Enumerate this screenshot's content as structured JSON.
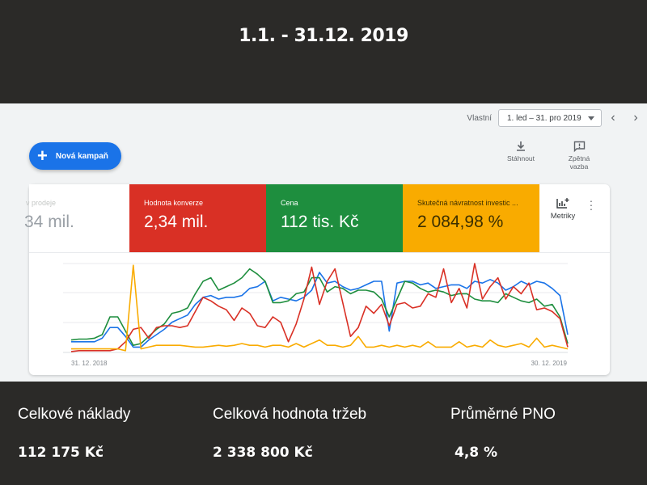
{
  "header": {
    "title": "1.1. - 31.12. 2019"
  },
  "toolbar": {
    "date_label": "Vlastní",
    "date_range": "1. led – 31. pro 2019",
    "prev_icon": "chevron-left-icon",
    "next_icon": "chevron-right-icon",
    "new_campaign_label": "Nová kampaň",
    "download_label": "Stáhnout",
    "feedback_label_1": "Zpětná",
    "feedback_label_2": "vazba"
  },
  "metrics": [
    {
      "label": "ν prodeje",
      "value": "34 mil.",
      "color": "#ffffff"
    },
    {
      "label": "Hodnota konverze",
      "value": "2,34 mil.",
      "color": "#d93025"
    },
    {
      "label": "Cena",
      "value": "112 tis. Kč",
      "color": "#1e8e3e"
    },
    {
      "label": "Skutečná návratnost investic ...",
      "value": "2 084,98 %",
      "color": "#f9ab00"
    }
  ],
  "metriky_label": "Metriky",
  "chart_data": {
    "type": "line",
    "x_start_label": "31. 12. 2018",
    "x_end_label": "30. 12. 2019",
    "grid": true,
    "series": [
      {
        "color": "#1a73e8",
        "values": [
          12,
          12,
          12,
          12,
          16,
          28,
          28,
          18,
          6,
          6,
          14,
          20,
          26,
          34,
          38,
          42,
          54,
          62,
          64,
          60,
          62,
          62,
          64,
          72,
          74,
          80,
          58,
          62,
          60,
          58,
          62,
          70,
          90,
          78,
          80,
          74,
          70,
          72,
          76,
          80,
          80,
          24,
          78,
          80,
          80,
          76,
          78,
          72,
          74,
          76,
          76,
          72,
          80,
          78,
          82,
          78,
          70,
          74,
          80,
          76,
          80,
          78,
          72,
          64,
          20
        ]
      },
      {
        "color": "#1e8e3e",
        "values": [
          14,
          15,
          15,
          16,
          20,
          40,
          40,
          24,
          8,
          10,
          18,
          26,
          32,
          44,
          46,
          50,
          66,
          80,
          84,
          70,
          74,
          78,
          84,
          94,
          88,
          80,
          56,
          56,
          58,
          66,
          68,
          84,
          84,
          68,
          74,
          72,
          66,
          70,
          70,
          68,
          60,
          40,
          60,
          80,
          78,
          72,
          68,
          70,
          68,
          64,
          66,
          66,
          60,
          58,
          58,
          56,
          66,
          62,
          58,
          56,
          60,
          52,
          54,
          40,
          10
        ]
      },
      {
        "color": "#d93025",
        "values": [
          1,
          2,
          2,
          2,
          2,
          2,
          4,
          12,
          26,
          28,
          16,
          28,
          30,
          30,
          28,
          30,
          46,
          62,
          58,
          52,
          48,
          36,
          50,
          44,
          30,
          28,
          40,
          34,
          12,
          32,
          60,
          96,
          54,
          80,
          94,
          56,
          18,
          28,
          52,
          44,
          54,
          30,
          54,
          56,
          50,
          52,
          66,
          62,
          94,
          56,
          72,
          50,
          100,
          60,
          74,
          84,
          60,
          74,
          66,
          78,
          48,
          50,
          46,
          38,
          6
        ]
      },
      {
        "color": "#f9ab00",
        "values": [
          4,
          4,
          4,
          4,
          4,
          4,
          4,
          2,
          98,
          4,
          6,
          8,
          8,
          8,
          8,
          7,
          6,
          6,
          7,
          8,
          7,
          8,
          10,
          8,
          8,
          6,
          8,
          8,
          6,
          10,
          6,
          10,
          14,
          8,
          8,
          6,
          8,
          18,
          6,
          6,
          8,
          6,
          8,
          6,
          8,
          6,
          12,
          6,
          6,
          6,
          12,
          6,
          8,
          6,
          14,
          8,
          6,
          8,
          10,
          6,
          16,
          6,
          8,
          6,
          4
        ]
      }
    ]
  },
  "stats": [
    {
      "label": "Celkové náklady",
      "value": "112 175 Kč"
    },
    {
      "label": "Celková hodnota tržeb",
      "value": "2 338 800 Kč"
    },
    {
      "label": "Průměrné PNO",
      "value": "4,8 %"
    }
  ]
}
